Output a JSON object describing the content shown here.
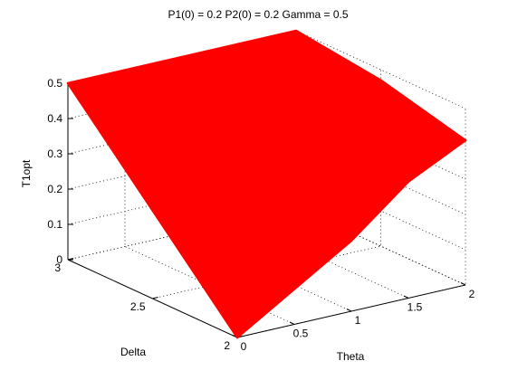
{
  "chart_data": {
    "type": "surface",
    "title": "P1(0) = 0.2 P2(0) = 0.2 Gamma = 0.5",
    "xlabel": "Theta",
    "ylabel": "Delta",
    "zlabel": "T1opt",
    "xlim": [
      0,
      2
    ],
    "ylim": [
      2,
      3
    ],
    "zlim": [
      0,
      0.5
    ],
    "x_ticks": [
      "0",
      "0.5",
      "1",
      "1.5",
      "2"
    ],
    "y_ticks": [
      "2",
      "2.5",
      "3"
    ],
    "z_ticks": [
      "0",
      "0.1",
      "0.2",
      "0.3",
      "0.4",
      "0.5"
    ],
    "grid": true,
    "surface_color": "#ff0000",
    "surface": {
      "theta": [
        0,
        0.5,
        1,
        1.5,
        2
      ],
      "delta": [
        2,
        2.5,
        3
      ],
      "t1opt": [
        [
          0.0,
          0.25,
          0.5
        ],
        [
          0.1,
          0.31,
          0.5
        ],
        [
          0.2,
          0.38,
          0.5
        ],
        [
          0.33,
          0.44,
          0.5
        ],
        [
          0.41,
          0.47,
          0.5
        ]
      ]
    }
  }
}
